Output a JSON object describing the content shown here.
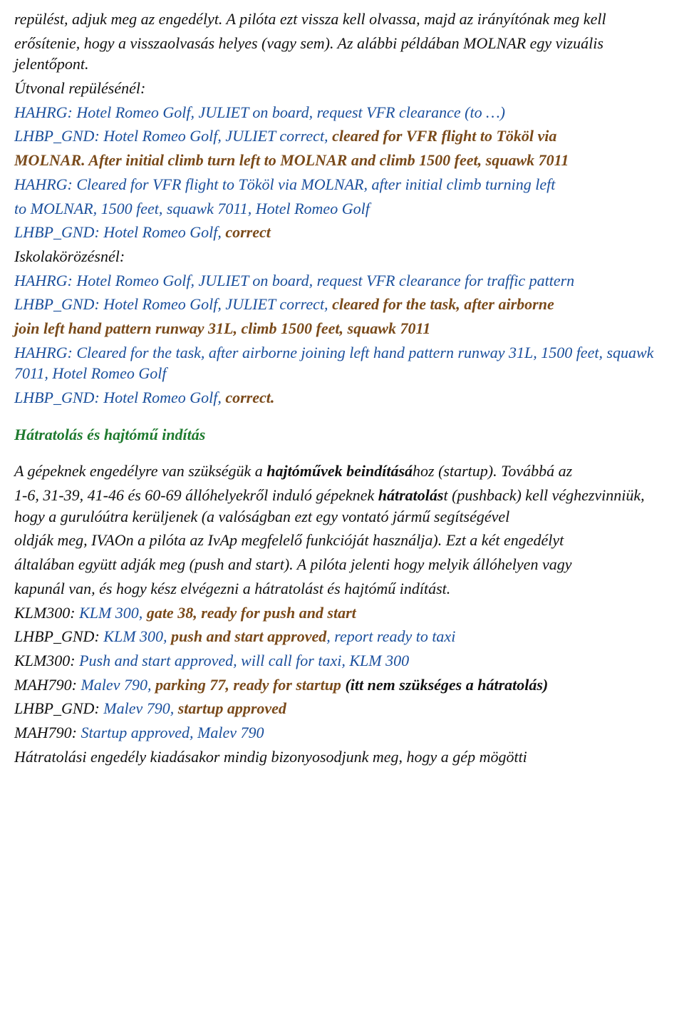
{
  "p1a": "repülést, adjuk meg az engedélyt. A pilóta ezt vissza kell olvassa, majd az irányítónak meg kell",
  "p1b": "erősítenie, hogy a visszaolvasás helyes (vagy sem). Az alábbi példában MOLNAR egy vizuális jelentőpont.",
  "p2": "Útvonal repülésénél:",
  "p3": "HAHRG: Hotel Romeo Golf, JULIET on board, request VFR clearance (to …)",
  "p4a": "LHBP_GND: Hotel Romeo Golf, JULIET correct, ",
  "p4b": "cleared for VFR flight to Tököl via",
  "p4c": "MOLNAR. After initial climb turn left to MOLNAR and climb 1500 feet, squawk 7011",
  "p5a": "HAHRG: Cleared for VFR flight to Tököl via MOLNAR, after initial climb turning left",
  "p5b": "to MOLNAR, 1500 feet, squawk 7011, Hotel Romeo Golf",
  "p6a": "LHBP_GND: Hotel Romeo Golf, ",
  "p6b": "correct",
  "p7": "Iskolakörözésnél:",
  "p8": "HAHRG: Hotel Romeo Golf, JULIET on board, request VFR clearance for traffic pattern",
  "p9a": "LHBP_GND: Hotel Romeo Golf, JULIET correct, ",
  "p9b": "cleared for the task, after airborne",
  "p9c": "join left hand pattern runway 31L, climb 1500 feet, squawk 7011",
  "p10": "HAHRG: Cleared for the task, after airborne joining left hand pattern runway 31L, 1500 feet, squawk 7011, Hotel Romeo Golf",
  "p11a": "LHBP_GND: Hotel Romeo Golf, ",
  "p11b": "correct.",
  "h1": "Hátratolás és hajtómű indítás",
  "p12a": "A gépeknek engedélyre van szükségük a ",
  "p12b": "hajtóművek beindításá",
  "p12c": "hoz (startup). Továbbá az",
  "p13a": "1-6, 31-39, 41-46 és 60-69 állóhelyekről induló gépeknek ",
  "p13b": "hátratolás",
  "p13c": "t (pushback) kell véghezvinniük, hogy a gurulóútra kerüljenek (a valóságban ezt egy vontató jármű segítségével",
  "p14": "oldják meg, IVAOn a pilóta az IvAp megfelelő funkcióját használja). Ezt a két engedélyt",
  "p15": "általában együtt adják meg (push and start). A pilóta jelenti hogy melyik állóhelyen vagy",
  "p16": "kapunál van, és hogy kész elvégezni a hátratolást és hajtómű indítást.",
  "p17a": "KLM300: ",
  "p17b": "KLM 300, ",
  "p17c": "gate 38, ready for push and start",
  "p18a": "LHBP_GND: ",
  "p18b": "KLM 300, ",
  "p18c": "push and start approved",
  "p18d": ", report ready to taxi",
  "p19a": "KLM300: ",
  "p19b": "Push and start approved, will call for taxi, KLM 300",
  "p20a": "MAH790: ",
  "p20b": "Malev 790, ",
  "p20c": "parking 77, ready for startup ",
  "p20d": "(itt nem szükséges a hátratolás)",
  "p21a": "LHBP_GND: ",
  "p21b": "Malev 790, ",
  "p21c": "startup approved",
  "p22a": "MAH790: ",
  "p22b": "Startup approved, Malev 790",
  "p23": "Hátratolási engedély kiadásakor mindig bizonyosodjunk meg, hogy a gép mögötti"
}
